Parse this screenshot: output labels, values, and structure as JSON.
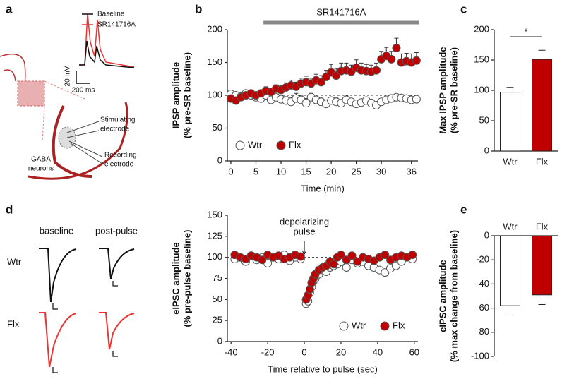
{
  "panel_a": {
    "panel": "a",
    "legend": [
      "Baseline",
      "SR141716A"
    ],
    "scale": [
      "20 mV",
      "200 ms"
    ],
    "stimulating": [
      "Stimulating",
      "electrode"
    ],
    "recording": [
      "Recording",
      "electrode"
    ],
    "neurons": [
      "GABA",
      "neurons"
    ]
  },
  "panel_d_traces": {
    "panel": "d",
    "columns": [
      "baseline",
      "post-pulse"
    ],
    "rows": [
      "Wtr",
      "Flx"
    ]
  },
  "chart_data": [
    {
      "type": "scatter",
      "panel": "b",
      "ylabel": [
        "IPSP amplitude",
        "(% pre-SR baseline)"
      ],
      "xlabel": "Time (min)",
      "annotation": "SR141716A",
      "annotation_span": [
        6.5,
        37.5
      ],
      "hline": 100,
      "legend": "lower left",
      "xlim": [
        -0.7,
        37.3
      ],
      "xticks": [
        0,
        5,
        10,
        15,
        20,
        25,
        30,
        36
      ],
      "ylim": [
        0,
        200
      ],
      "yticks": [
        0,
        50,
        100,
        150,
        200
      ],
      "x": [
        0,
        1,
        2,
        3,
        4,
        5,
        6,
        7,
        8,
        9,
        10,
        11,
        12,
        13,
        14,
        15,
        16,
        17,
        18,
        19,
        20,
        21,
        22,
        23,
        24,
        25,
        26,
        27,
        28,
        29,
        30,
        31,
        32,
        33,
        34,
        35,
        36,
        37
      ],
      "series": [
        {
          "name": "Wtr",
          "color": "#ffffff",
          "values": [
            102,
            100,
            98,
            103,
            100,
            97,
            95,
            100,
            93,
            97,
            94,
            92,
            90,
            95,
            93,
            88,
            97,
            93,
            90,
            87,
            92,
            90,
            88,
            93,
            90,
            87,
            89,
            92,
            88,
            85,
            90,
            93,
            95,
            97,
            96,
            95,
            93,
            94
          ],
          "errors": [
            4,
            4,
            3,
            5,
            4,
            4,
            5,
            5,
            6,
            5,
            5,
            6,
            7,
            8,
            6,
            7,
            6,
            5,
            7,
            6,
            5,
            6,
            5,
            6,
            5,
            6,
            5,
            5,
            6,
            5,
            5,
            5,
            6,
            5,
            5,
            4,
            5,
            4
          ]
        },
        {
          "name": "Flx",
          "color": "#c00000",
          "values": [
            95,
            92,
            97,
            100,
            103,
            100,
            103,
            107,
            105,
            110,
            108,
            112,
            115,
            113,
            118,
            120,
            118,
            123,
            120,
            128,
            135,
            130,
            137,
            138,
            136,
            142,
            138,
            137,
            136,
            138,
            155,
            160,
            155,
            172,
            150,
            152,
            150,
            153
          ],
          "errors": [
            4,
            4,
            4,
            5,
            4,
            5,
            5,
            6,
            6,
            6,
            7,
            7,
            8,
            7,
            8,
            9,
            8,
            9,
            10,
            10,
            12,
            11,
            12,
            11,
            10,
            12,
            11,
            10,
            10,
            11,
            12,
            13,
            12,
            15,
            13,
            12,
            13,
            12
          ]
        }
      ]
    },
    {
      "type": "bar",
      "panel": "c",
      "ylabel": [
        "Max IPSP amplitude",
        "(% pre-SR baseline)"
      ],
      "significance": "*",
      "categories": [
        "Wtr",
        "Flx"
      ],
      "values": [
        97,
        151
      ],
      "errors": [
        8,
        15
      ],
      "colors": [
        "#ffffff",
        "#c00000"
      ],
      "ylim": [
        0,
        200
      ],
      "yticks": [
        0,
        50,
        100,
        150,
        200
      ]
    },
    {
      "type": "scatter",
      "ylabel": [
        "eIPSC amplitude",
        "(% pre-pulse baseline)"
      ],
      "xlabel": "Time relative to pulse (sec)",
      "annotation": [
        "depolarizing",
        "pulse"
      ],
      "annotation_x": 0,
      "hline": 100,
      "legend": "lower right",
      "xlim": [
        -42,
        62
      ],
      "xticks": [
        -40,
        -20,
        0,
        20,
        40,
        60
      ],
      "ylim": [
        0,
        150
      ],
      "yticks": [
        0,
        25,
        50,
        75,
        100,
        125,
        150
      ],
      "x": [
        -38,
        -35,
        -32,
        -29,
        -26,
        -23,
        -20,
        -17,
        -14,
        -11,
        -8,
        -5,
        -2,
        1,
        2,
        3,
        4,
        5,
        6,
        8,
        10,
        12,
        14,
        16,
        18,
        20,
        23,
        26,
        29,
        32,
        35,
        38,
        41,
        44,
        47,
        50,
        53,
        56,
        59
      ],
      "series": [
        {
          "name": "Wtr",
          "color": "#ffffff",
          "values": [
            98,
            100,
            95,
            102,
            97,
            100,
            93,
            100,
            98,
            103,
            96,
            100,
            98,
            45,
            48,
            58,
            65,
            72,
            75,
            80,
            85,
            83,
            88,
            90,
            92,
            95,
            88,
            97,
            93,
            95,
            90,
            88,
            85,
            82,
            87,
            90,
            95,
            100,
            98
          ]
        },
        {
          "name": "Flx",
          "color": "#c00000",
          "values": [
            103,
            100,
            98,
            102,
            100,
            97,
            103,
            100,
            102,
            98,
            100,
            103,
            101,
            50,
            55,
            62,
            70,
            75,
            80,
            85,
            88,
            90,
            95,
            92,
            100,
            103,
            97,
            102,
            95,
            100,
            98,
            96,
            100,
            103,
            97,
            100,
            102,
            100,
            103
          ]
        }
      ]
    },
    {
      "type": "bar",
      "panel": "e",
      "ylabel": [
        "eIPSC amplitude",
        "(% max change from baseline)"
      ],
      "xaxis_position": "top",
      "categories": [
        "Wtr",
        "Flx"
      ],
      "values": [
        -58,
        -49
      ],
      "errors": [
        6,
        8
      ],
      "colors": [
        "#ffffff",
        "#c00000"
      ],
      "ylim": [
        -100,
        0
      ],
      "yticks": [
        -100,
        -80,
        -60,
        -40,
        -20,
        0
      ]
    }
  ]
}
